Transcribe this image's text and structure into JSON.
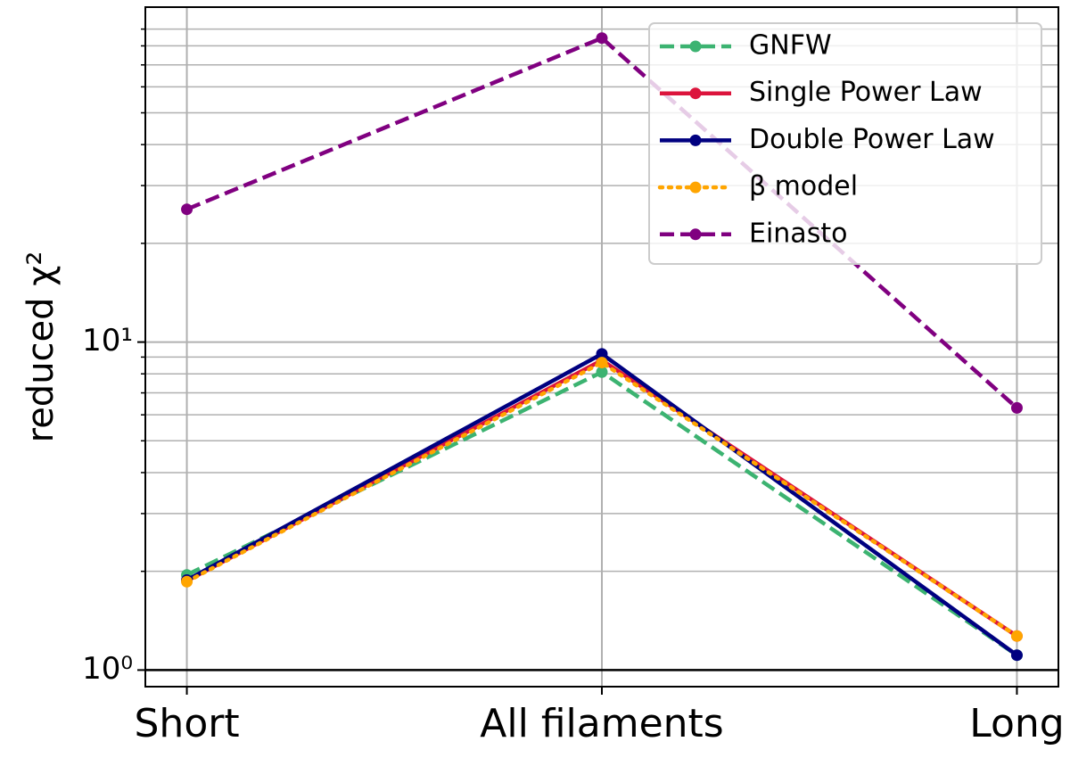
{
  "chart_data": {
    "type": "line",
    "y_axis_label": "reduced χ²",
    "categories": [
      "Short",
      "All filaments",
      "Long"
    ],
    "series": [
      {
        "name": "GNFW",
        "color": "#3cb371",
        "linestyle": "dashed",
        "values": [
          1.95,
          8.1,
          1.11
        ]
      },
      {
        "name": "Single Power Law",
        "color": "#dc143c",
        "linestyle": "solid",
        "values": [
          1.87,
          8.8,
          1.27
        ]
      },
      {
        "name": "Double Power Law",
        "color": "#000080",
        "linestyle": "solid",
        "values": [
          1.88,
          9.2,
          1.11
        ]
      },
      {
        "name": "β model",
        "color": "#ffa500",
        "linestyle": "dotted",
        "values": [
          1.86,
          8.66,
          1.27
        ]
      },
      {
        "name": "Einasto",
        "color": "#800080",
        "linestyle": "dashed",
        "values": [
          25.4,
          84.5,
          6.3
        ]
      }
    ],
    "log_y": true,
    "ylim": [
      0.89,
      105
    ],
    "yticks": [
      {
        "value": 1,
        "label": "10⁰"
      },
      {
        "value": 10,
        "label": "10¹"
      }
    ],
    "minor_yticks": [
      2,
      3,
      4,
      5,
      6,
      7,
      8,
      9,
      20,
      30,
      40,
      50,
      60,
      70,
      80,
      90
    ],
    "hline": 1,
    "grid": true,
    "legend": "upper-right"
  }
}
